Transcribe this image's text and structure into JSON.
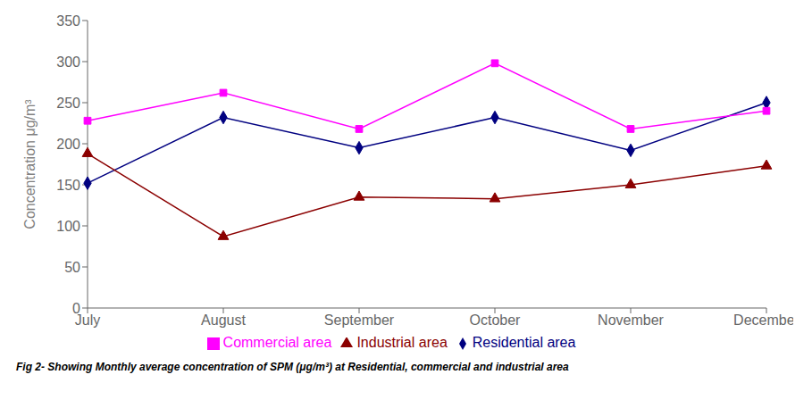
{
  "chart_data": {
    "type": "line",
    "title": "Fig 2- Showing Monthly average concentration of SPM (μg/m³) at Residential, commercial and industrial area",
    "categories": [
      "July",
      "August",
      "September",
      "October",
      "November",
      "December"
    ],
    "series": [
      {
        "name": "Residential area",
        "color": "#000080",
        "marker": "diamond",
        "values": [
          152,
          232,
          195,
          232,
          192,
          250
        ]
      },
      {
        "name": "Commercial area",
        "color": "#FF00FF",
        "marker": "square",
        "values": [
          228,
          262,
          218,
          298,
          218,
          240
        ]
      },
      {
        "name": "Industrial area",
        "color": "#8B0000",
        "marker": "triangle",
        "values": [
          188,
          87,
          135,
          133,
          150,
          173
        ]
      }
    ],
    "ylim": [
      0,
      350
    ],
    "yticks": [
      0,
      50,
      100,
      150,
      200,
      250,
      300,
      350
    ],
    "ylabel": "Concentration μg/m³",
    "grid": false,
    "legend": "bottom"
  }
}
